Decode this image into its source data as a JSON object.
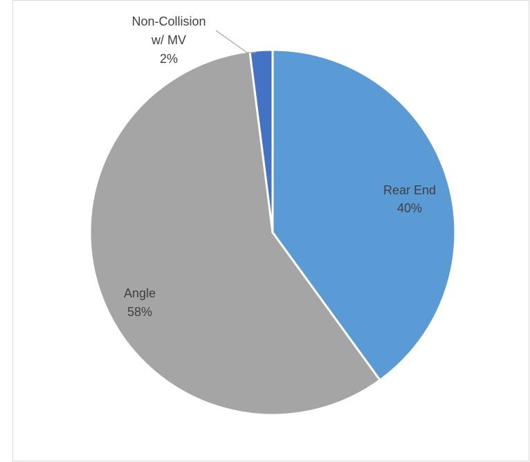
{
  "chart_data": {
    "type": "pie",
    "title": "",
    "slices": [
      {
        "label": "Rear End",
        "value": 40,
        "percent_label": "40%",
        "color": "#5b9bd5",
        "label_color": "#404040"
      },
      {
        "label": "Angle",
        "value": 58,
        "percent_label": "58%",
        "color": "#a5a5a5",
        "label_color": "#404040"
      },
      {
        "label": "Non-Collision w/ MV",
        "label_lines": [
          "Non-Collision",
          "w/ MV"
        ],
        "value": 2,
        "percent_label": "2%",
        "color": "#4472c4",
        "label_color": "#404040"
      }
    ],
    "start_angle_deg": 0,
    "direction": "clockwise",
    "slice_border_color": "#ffffff",
    "frame_border_color": "#d9d9d9",
    "legend": "none"
  }
}
